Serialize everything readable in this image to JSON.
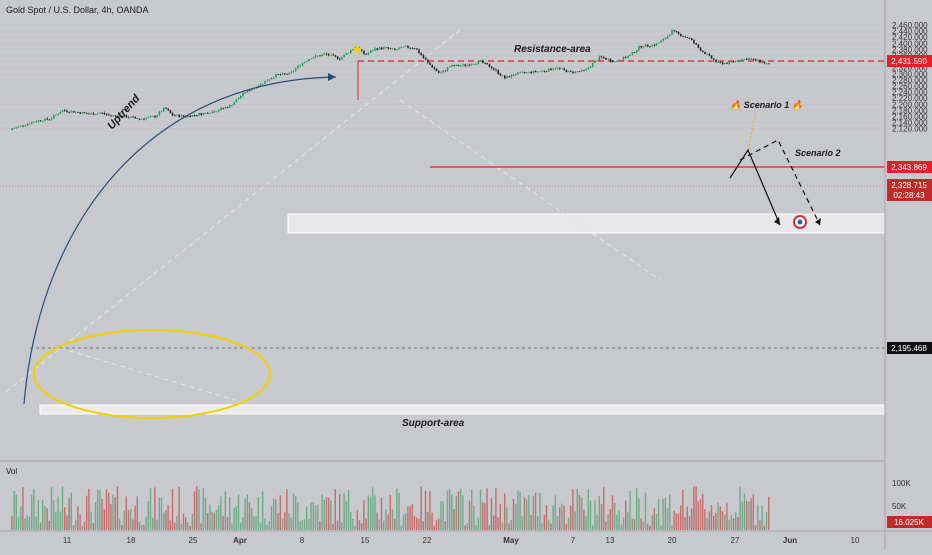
{
  "header": {
    "symbol_title": "Gold Spot / U.S. Dollar, 4h, OANDA"
  },
  "chart_data": {
    "type": "candlestick",
    "symbol": "Gold Spot / U.S. Dollar, 4h, OANDA",
    "y_ticks": [
      2120,
      2140,
      2160,
      2180,
      2200,
      2220,
      2240,
      2260,
      2280,
      2300,
      2320,
      2340,
      2360,
      2380,
      2400,
      2420,
      2440,
      2460
    ],
    "x_ticks": [
      "11",
      "18",
      "25",
      "Apr",
      "8",
      "15",
      "22",
      "May",
      "7",
      "13",
      "20",
      "27",
      "Jun",
      "10"
    ],
    "price_path": [
      [
        0,
        2093
      ],
      [
        8,
        2115
      ],
      [
        20,
        2128
      ],
      [
        35,
        2145
      ],
      [
        50,
        2152
      ],
      [
        62,
        2180
      ],
      [
        75,
        2175
      ],
      [
        90,
        2168
      ],
      [
        100,
        2172
      ],
      [
        112,
        2162
      ],
      [
        125,
        2160
      ],
      [
        140,
        2152
      ],
      [
        155,
        2160
      ],
      [
        165,
        2188
      ],
      [
        172,
        2165
      ],
      [
        185,
        2160
      ],
      [
        200,
        2168
      ],
      [
        215,
        2178
      ],
      [
        230,
        2195
      ],
      [
        245,
        2240
      ],
      [
        260,
        2265
      ],
      [
        275,
        2295
      ],
      [
        290,
        2300
      ],
      [
        300,
        2330
      ],
      [
        310,
        2352
      ],
      [
        325,
        2365
      ],
      [
        340,
        2350
      ],
      [
        348,
        2370
      ],
      [
        356,
        2390
      ],
      [
        365,
        2362
      ],
      [
        375,
        2382
      ],
      [
        385,
        2385
      ],
      [
        395,
        2378
      ],
      [
        405,
        2388
      ],
      [
        415,
        2385
      ],
      [
        428,
        2335
      ],
      [
        440,
        2300
      ],
      [
        450,
        2325
      ],
      [
        465,
        2328
      ],
      [
        480,
        2340
      ],
      [
        492,
        2320
      ],
      [
        505,
        2285
      ],
      [
        515,
        2300
      ],
      [
        530,
        2305
      ],
      [
        545,
        2310
      ],
      [
        556,
        2320
      ],
      [
        570,
        2305
      ],
      [
        585,
        2310
      ],
      [
        600,
        2355
      ],
      [
        615,
        2340
      ],
      [
        630,
        2360
      ],
      [
        640,
        2390
      ],
      [
        655,
        2395
      ],
      [
        665,
        2415
      ],
      [
        672,
        2440
      ],
      [
        680,
        2428
      ],
      [
        690,
        2415
      ],
      [
        700,
        2380
      ],
      [
        710,
        2355
      ],
      [
        718,
        2335
      ],
      [
        728,
        2335
      ],
      [
        738,
        2345
      ],
      [
        748,
        2350
      ],
      [
        758,
        2342
      ],
      [
        765,
        2335
      ],
      [
        770,
        2329
      ]
    ],
    "last_price": "2,328.715",
    "countdown": "02:28:43",
    "resistance_price": "2,431.590",
    "level_price": "2,343.869",
    "support_price": "2,195.468",
    "volume_ticks": [
      "100K",
      "50K"
    ],
    "volume_last": "16.025K",
    "volume_label": "Vol",
    "annotations": {
      "resistance_area": "Resistance-area",
      "support_area": "Support-area",
      "uptrend": "Uptrend",
      "scenario1": "🔥 Scenario 1 🔥",
      "scenario2": "Scenario 2"
    },
    "colors": {
      "up": "#1e9e5a",
      "down": "#222222",
      "resistance": "#e0202a",
      "support_box": "#ececec",
      "ellipse": "#f2d000",
      "arc": "#2a4b72",
      "panel": "#c8c9cc"
    }
  }
}
